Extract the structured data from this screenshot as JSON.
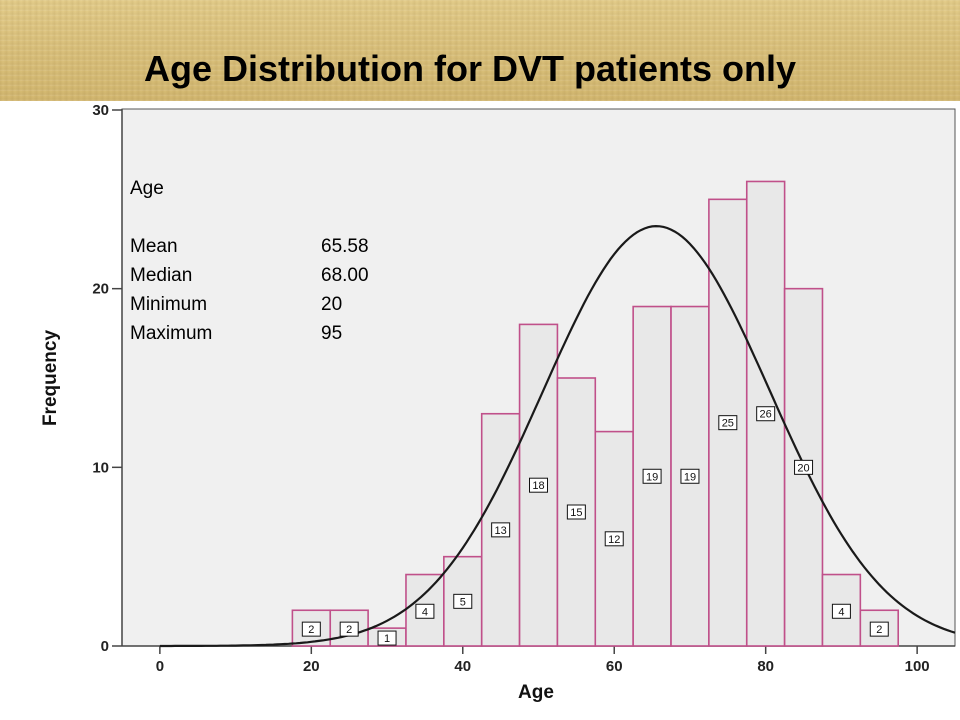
{
  "page": {
    "title": "Age Distribution for DVT patients only",
    "banner_color": "#dcc27c"
  },
  "stats_box": {
    "heading": "Age",
    "rows": [
      {
        "label": "Mean",
        "value": "65.58"
      },
      {
        "label": "Median",
        "value": "68.00"
      },
      {
        "label": "Minimum",
        "value": "20"
      },
      {
        "label": "Maximum",
        "value": "95"
      }
    ]
  },
  "chart_data": {
    "type": "bar",
    "xlabel": "Age",
    "ylabel": "Frequency",
    "xlim": [
      -5,
      105
    ],
    "ylim": [
      0,
      30
    ],
    "x_ticks": [
      0,
      20,
      40,
      60,
      80,
      100
    ],
    "y_ticks": [
      0,
      10,
      20,
      30
    ],
    "bin_width": 5,
    "bins": [
      {
        "start": 17.5,
        "end": 22.5,
        "value": 2
      },
      {
        "start": 22.5,
        "end": 27.5,
        "value": 2
      },
      {
        "start": 27.5,
        "end": 32.5,
        "value": 1
      },
      {
        "start": 32.5,
        "end": 37.5,
        "value": 4
      },
      {
        "start": 37.5,
        "end": 42.5,
        "value": 5
      },
      {
        "start": 42.5,
        "end": 47.5,
        "value": 13
      },
      {
        "start": 47.5,
        "end": 52.5,
        "value": 18
      },
      {
        "start": 52.5,
        "end": 57.5,
        "value": 15
      },
      {
        "start": 57.5,
        "end": 62.5,
        "value": 12
      },
      {
        "start": 62.5,
        "end": 67.5,
        "value": 19
      },
      {
        "start": 67.5,
        "end": 72.5,
        "value": 19
      },
      {
        "start": 72.5,
        "end": 77.5,
        "value": 25
      },
      {
        "start": 77.5,
        "end": 82.5,
        "value": 26
      },
      {
        "start": 82.5,
        "end": 87.5,
        "value": 20
      },
      {
        "start": 87.5,
        "end": 92.5,
        "value": 4
      },
      {
        "start": 92.5,
        "end": 97.5,
        "value": 2
      }
    ],
    "normal_curve": {
      "mean": 65.58,
      "peak": 23.5,
      "sd": 15.0
    },
    "grid": false,
    "colors": {
      "plot_background": "#f0f0f0",
      "bar_fill": "#e8e8e8",
      "bar_stroke": "#c0508a",
      "curve": "#1a1a1a",
      "axis": "#444444"
    }
  }
}
